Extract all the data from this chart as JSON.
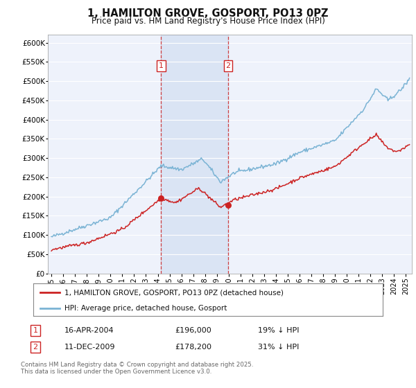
{
  "title": "1, HAMILTON GROVE, GOSPORT, PO13 0PZ",
  "subtitle": "Price paid vs. HM Land Registry's House Price Index (HPI)",
  "hpi_color": "#7ab3d4",
  "price_color": "#cc2222",
  "marker1_x": 2004.29,
  "marker2_x": 2009.95,
  "marker1_label": "1",
  "marker2_label": "2",
  "marker1_price_val": 196000,
  "marker2_price_val": 178200,
  "marker1_date": "16-APR-2004",
  "marker1_price": "£196,000",
  "marker1_pct": "19% ↓ HPI",
  "marker2_date": "11-DEC-2009",
  "marker2_price": "£178,200",
  "marker2_pct": "31% ↓ HPI",
  "legend_line1": "1, HAMILTON GROVE, GOSPORT, PO13 0PZ (detached house)",
  "legend_line2": "HPI: Average price, detached house, Gosport",
  "footer": "Contains HM Land Registry data © Crown copyright and database right 2025.\nThis data is licensed under the Open Government Licence v3.0.",
  "ylim": [
    0,
    620000
  ],
  "xlim_start": 1994.7,
  "xlim_end": 2025.5,
  "background_color": "#ffffff",
  "plot_bg_color": "#eef2fb",
  "grid_color": "#ffffff",
  "span_color": "#c8d8ee",
  "yticks": [
    0,
    50000,
    100000,
    150000,
    200000,
    250000,
    300000,
    350000,
    400000,
    450000,
    500000,
    550000,
    600000
  ],
  "ylabels": [
    "£0",
    "£50K",
    "£100K",
    "£150K",
    "£200K",
    "£250K",
    "£300K",
    "£350K",
    "£400K",
    "£450K",
    "£500K",
    "£550K",
    "£600K"
  ],
  "xticks": [
    1995,
    1996,
    1997,
    1998,
    1999,
    2000,
    2001,
    2002,
    2003,
    2004,
    2005,
    2006,
    2007,
    2008,
    2009,
    2010,
    2011,
    2012,
    2013,
    2014,
    2015,
    2016,
    2017,
    2018,
    2019,
    2020,
    2021,
    2022,
    2023,
    2024,
    2025
  ]
}
